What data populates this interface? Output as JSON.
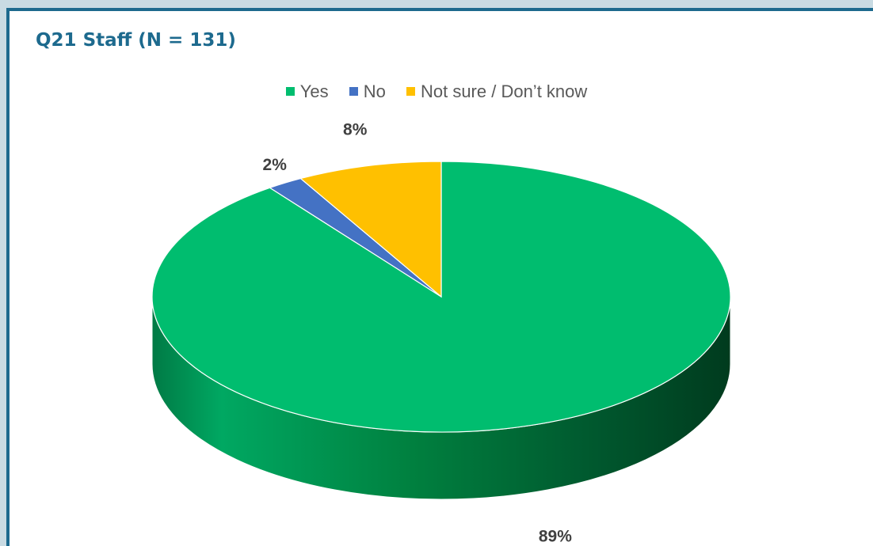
{
  "title": "Q21 Staff (N = 131)",
  "chart_data": {
    "type": "pie",
    "title": "Q21 Staff (N = 131)",
    "three_d": true,
    "legend_position": "top",
    "slices": [
      {
        "label": "Yes",
        "value": 89,
        "value_label": "89%",
        "color": "#00bd6f"
      },
      {
        "label": "No",
        "value": 2,
        "value_label": "2%",
        "color": "#4472c4"
      },
      {
        "label": "Not sure / Don’t know",
        "value": 8,
        "value_label": "8%",
        "color": "#ffc000"
      }
    ]
  }
}
